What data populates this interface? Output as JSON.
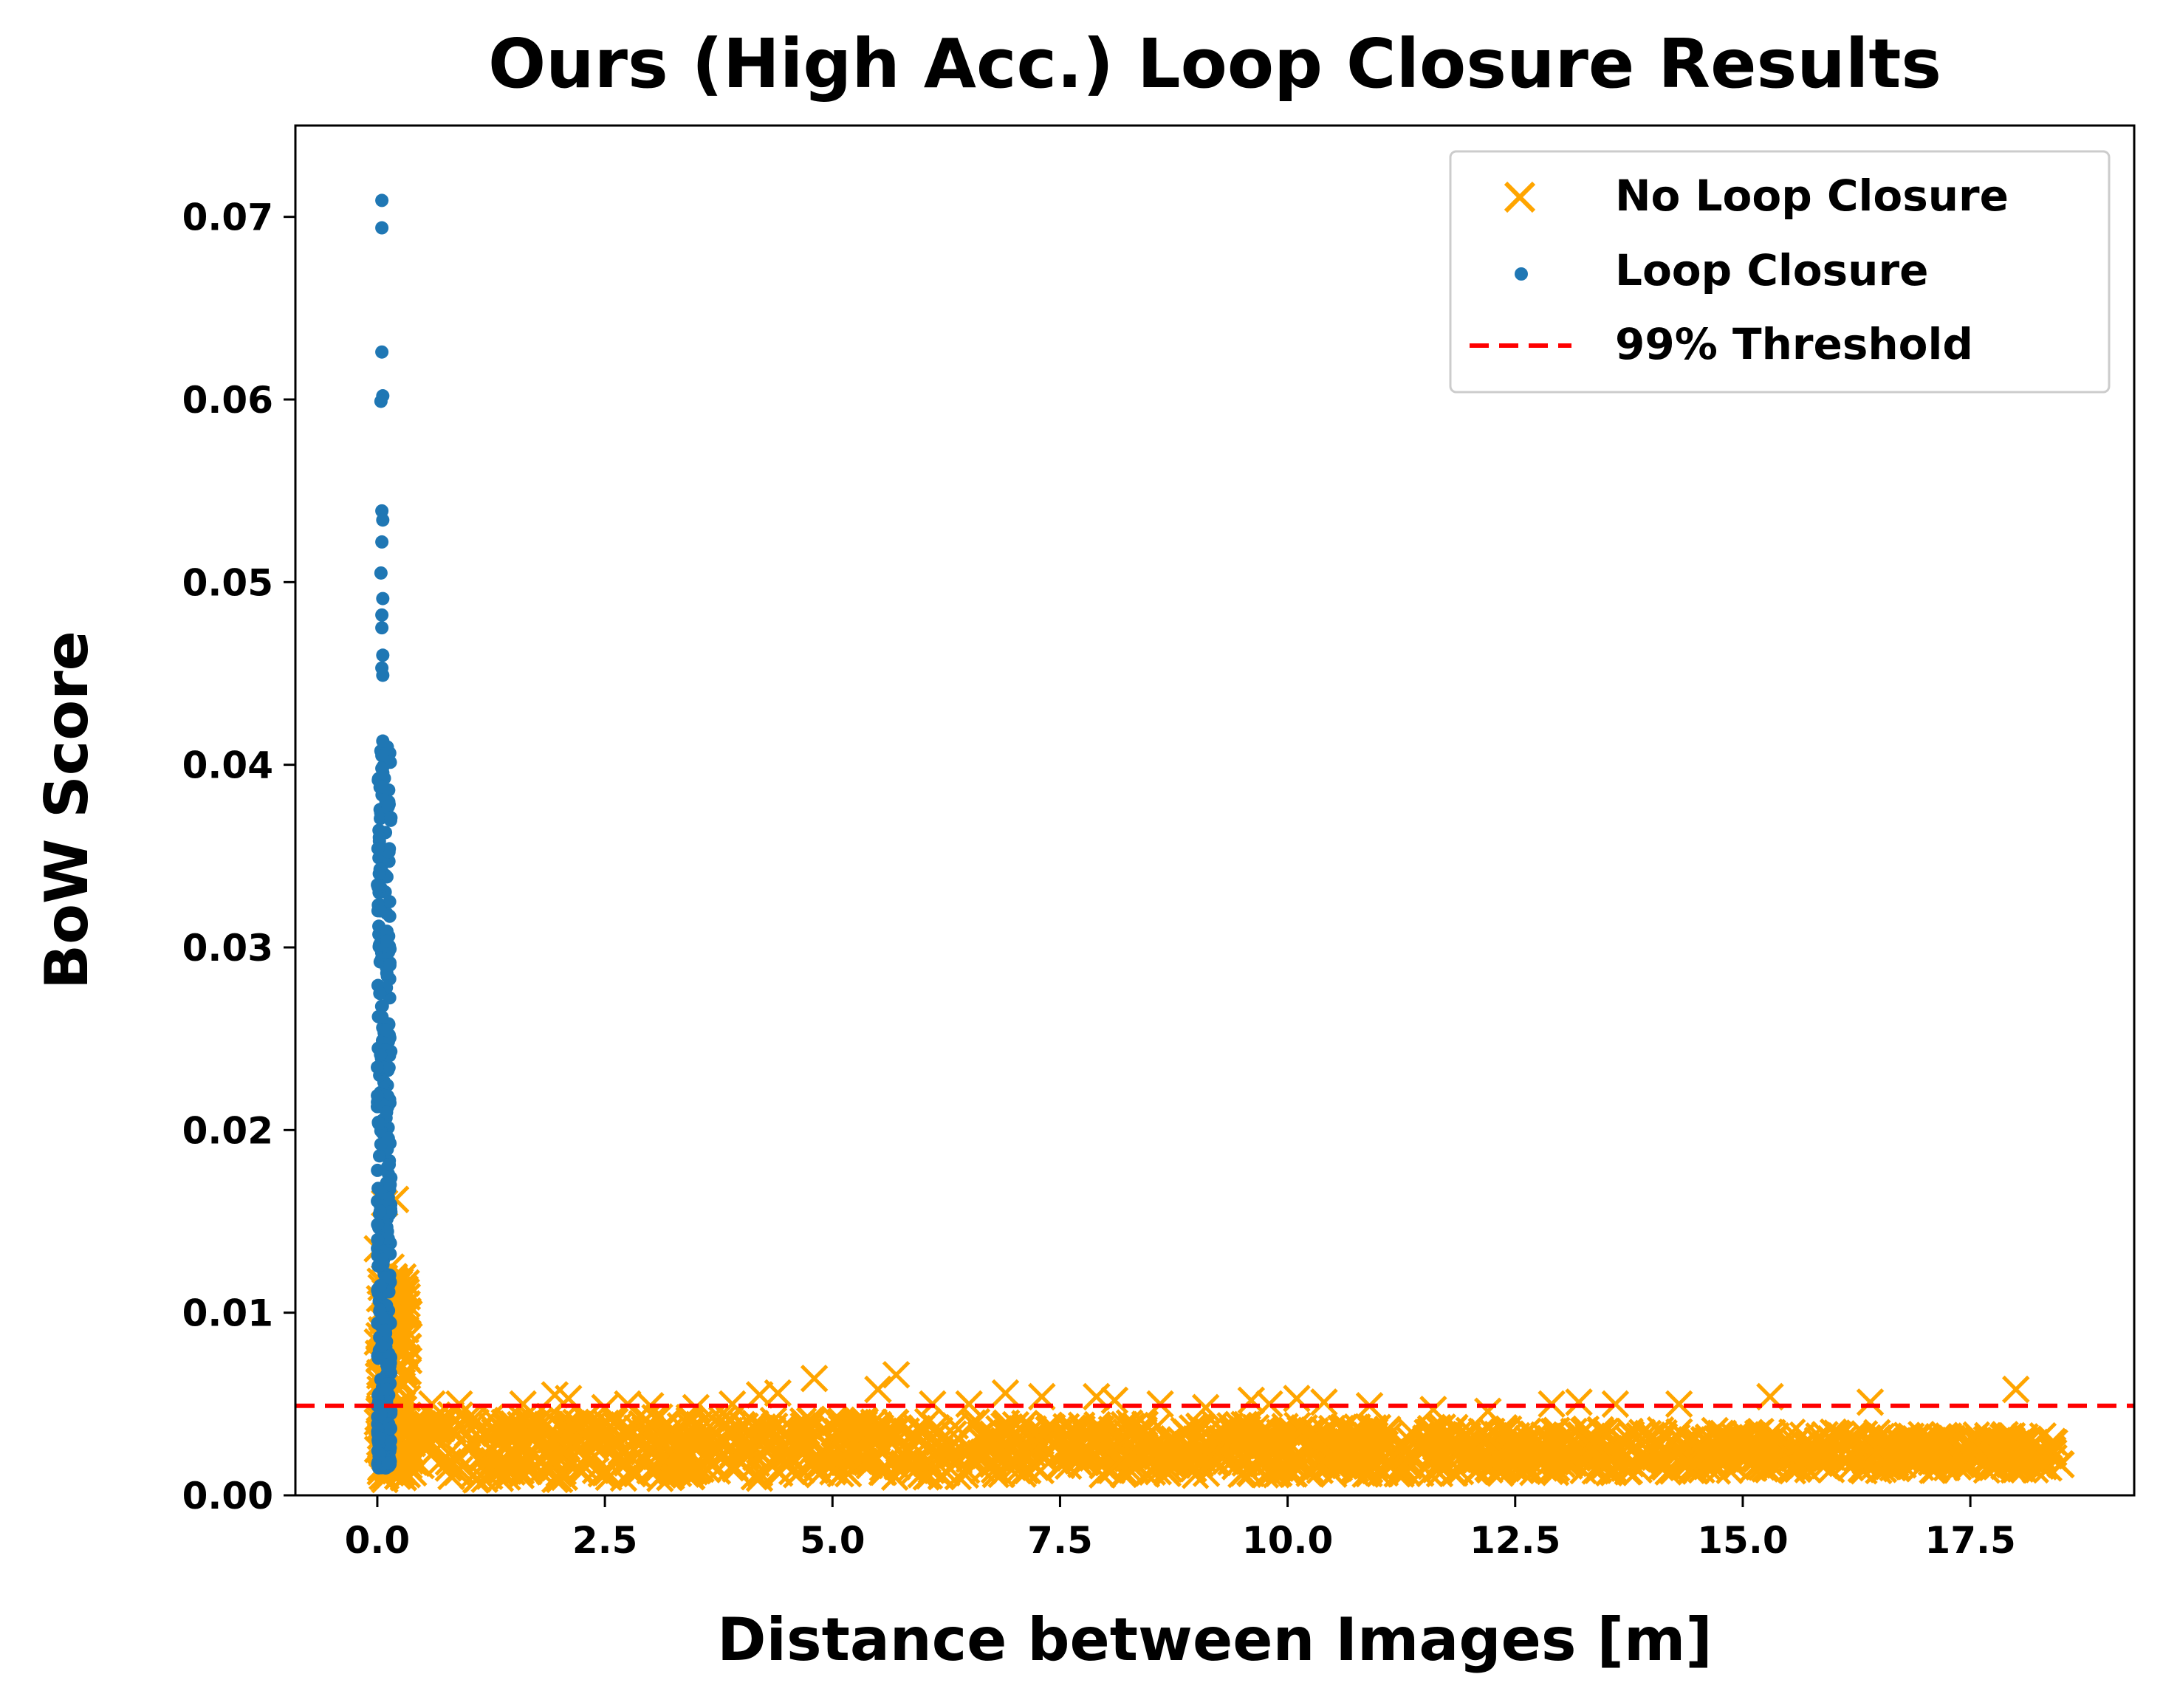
{
  "chart_data": {
    "type": "scatter",
    "title": "Ours (High Acc.) Loop Closure Results",
    "xlabel": "Distance between Images [m]",
    "ylabel": "BoW Score",
    "xlim": [
      -0.9,
      19.3
    ],
    "ylim": [
      0.0,
      0.075
    ],
    "xticks": [
      0.0,
      2.5,
      5.0,
      7.5,
      10.0,
      12.5,
      15.0,
      17.5
    ],
    "xtick_labels": [
      "0.0",
      "2.5",
      "5.0",
      "7.5",
      "10.0",
      "12.5",
      "15.0",
      "17.5"
    ],
    "yticks": [
      0.0,
      0.01,
      0.02,
      0.03,
      0.04,
      0.05,
      0.06,
      0.07
    ],
    "ytick_labels": [
      "0.00",
      "0.01",
      "0.02",
      "0.03",
      "0.04",
      "0.05",
      "0.06",
      "0.07"
    ],
    "grid": false,
    "legend": {
      "position": "top-right",
      "entries": [
        {
          "name": "No Loop Closure",
          "marker": "x",
          "color": "#FFA500"
        },
        {
          "name": "Loop Closure",
          "marker": "dot",
          "color": "#1F77B4"
        },
        {
          "name": "99% Threshold",
          "marker": "dashed-line",
          "color": "#FF0000"
        }
      ]
    },
    "threshold": 0.0049,
    "series": [
      {
        "name": "No Loop Closure",
        "marker": "x",
        "color": "#FFA500",
        "band": {
          "x_range": [
            0.0,
            18.5
          ],
          "y_min": 0.0008,
          "y_max": 0.0045
        },
        "points": [
          [
            0.08,
            0.016
          ],
          [
            0.2,
            0.0162
          ],
          [
            0.15,
            0.0125
          ],
          [
            0.0,
            0.0135
          ],
          [
            0.12,
            0.011
          ],
          [
            0.25,
            0.0095
          ],
          [
            0.05,
            0.0085
          ],
          [
            0.18,
            0.0075
          ],
          [
            0.3,
            0.0065
          ],
          [
            0.1,
            0.0058
          ],
          [
            0.6,
            0.005
          ],
          [
            0.9,
            0.005
          ],
          [
            1.6,
            0.005
          ],
          [
            1.95,
            0.0055
          ],
          [
            2.1,
            0.0053
          ],
          [
            2.5,
            0.0048
          ],
          [
            2.75,
            0.005
          ],
          [
            3.0,
            0.0049
          ],
          [
            3.5,
            0.0048
          ],
          [
            3.9,
            0.005
          ],
          [
            4.2,
            0.0055
          ],
          [
            4.4,
            0.0056
          ],
          [
            4.8,
            0.0064
          ],
          [
            5.5,
            0.0058
          ],
          [
            5.7,
            0.0066
          ],
          [
            6.1,
            0.005
          ],
          [
            6.5,
            0.005
          ],
          [
            6.9,
            0.0056
          ],
          [
            7.3,
            0.0054
          ],
          [
            7.9,
            0.0054
          ],
          [
            8.1,
            0.0052
          ],
          [
            8.6,
            0.005
          ],
          [
            9.1,
            0.0048
          ],
          [
            9.6,
            0.0052
          ],
          [
            9.8,
            0.005
          ],
          [
            10.1,
            0.0053
          ],
          [
            10.4,
            0.0051
          ],
          [
            10.9,
            0.0049
          ],
          [
            11.6,
            0.0047
          ],
          [
            12.2,
            0.0046
          ],
          [
            12.9,
            0.005
          ],
          [
            13.2,
            0.0051
          ],
          [
            13.6,
            0.005
          ],
          [
            14.3,
            0.005
          ],
          [
            15.3,
            0.0054
          ],
          [
            16.4,
            0.0051
          ],
          [
            18.0,
            0.0058
          ],
          [
            18.4,
            0.0025
          ],
          [
            18.1,
            0.0032
          ],
          [
            17.8,
            0.003
          ]
        ]
      },
      {
        "name": "Loop Closure",
        "marker": "dot",
        "color": "#1F77B4",
        "cluster": {
          "x_range": [
            0.0,
            0.15
          ],
          "y_min": 0.0015,
          "y_max": 0.041
        },
        "points": [
          [
            0.05,
            0.0709
          ],
          [
            0.05,
            0.0694
          ],
          [
            0.05,
            0.0626
          ],
          [
            0.06,
            0.0602
          ],
          [
            0.04,
            0.0599
          ],
          [
            0.05,
            0.0539
          ],
          [
            0.06,
            0.0534
          ],
          [
            0.05,
            0.0522
          ],
          [
            0.04,
            0.0505
          ],
          [
            0.06,
            0.0491
          ],
          [
            0.05,
            0.0482
          ],
          [
            0.05,
            0.0475
          ],
          [
            0.06,
            0.046
          ],
          [
            0.05,
            0.0453
          ],
          [
            0.06,
            0.0449
          ],
          [
            0.06,
            0.0413
          ],
          [
            0.05,
            0.0405
          ],
          [
            0.05,
            0.0398
          ],
          [
            0.06,
            0.0388
          ]
        ]
      }
    ]
  }
}
